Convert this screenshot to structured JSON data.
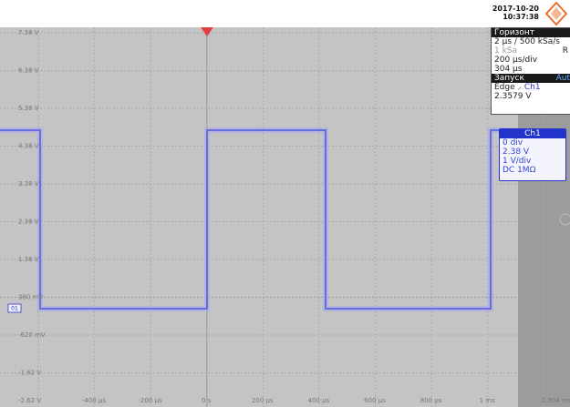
{
  "header": {
    "date": "2017-10-20",
    "time": "10:37:38"
  },
  "y_labels": [
    "7.38 V",
    "6.38 V",
    "5.38 V",
    "4.38 V",
    "3.38 V",
    "2.38 V",
    "1.38 V",
    "380 mV",
    "-620 mV",
    "-1.62 V",
    "-2.62 V"
  ],
  "x_labels": [
    "-400 µs",
    "-200 µs",
    "0 s",
    "200 µs",
    "400 µs",
    "600 µs",
    "800 µs",
    "1 ms",
    "1.304 ms"
  ],
  "ground_marker": "01",
  "horizontal_panel": {
    "title": "Горизонт",
    "sample": "2 µs / 500 kSa/s",
    "length": "1 kSa",
    "flag": "R",
    "scale": "200 µs/div",
    "position": "304 µs"
  },
  "trigger_panel": {
    "title": "Запуск",
    "mode": "Aut",
    "type": "Edge",
    "source": "Ch1",
    "level": "2.3579 V"
  },
  "channel_panel": {
    "title": "Ch1",
    "offset": "0 div",
    "level": "2.38 V",
    "scale": "1 V/div",
    "coupling": "DC 1MΩ"
  }
}
